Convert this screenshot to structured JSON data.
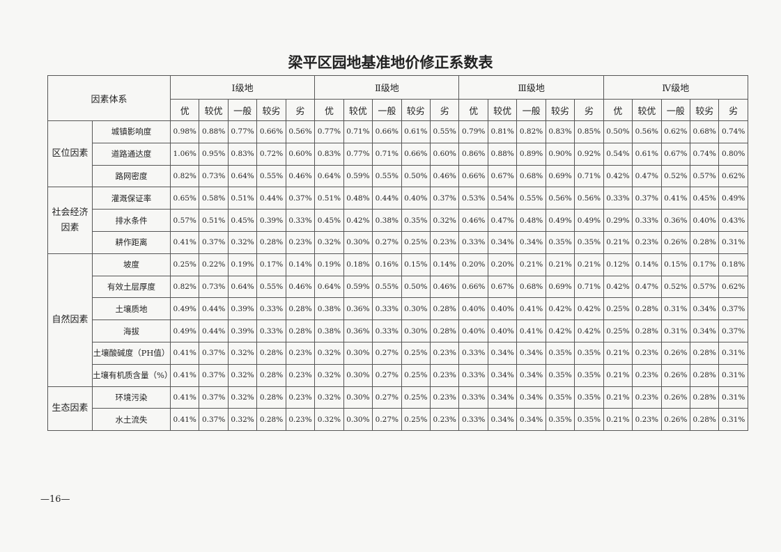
{
  "header": {
    "title": "梁平区园地基准地价修正系数表"
  },
  "table": {
    "corner": "因素体系",
    "grades": [
      "Ⅰ级地",
      "Ⅱ级地",
      "Ⅲ级地",
      "Ⅳ级地"
    ],
    "levels": [
      "优",
      "较优",
      "一般",
      "较劣",
      "劣"
    ],
    "groups": [
      {
        "name": "区位因素",
        "rows": [
          {
            "factor": "城镇影响度",
            "values": [
              "0.98%",
              "0.88%",
              "0.77%",
              "0.66%",
              "0.56%",
              "0.77%",
              "0.71%",
              "0.66%",
              "0.61%",
              "0.55%",
              "0.79%",
              "0.81%",
              "0.82%",
              "0.83%",
              "0.85%",
              "0.50%",
              "0.56%",
              "0.62%",
              "0.68%",
              "0.74%"
            ]
          },
          {
            "factor": "道路通达度",
            "values": [
              "1.06%",
              "0.95%",
              "0.83%",
              "0.72%",
              "0.60%",
              "0.83%",
              "0.77%",
              "0.71%",
              "0.66%",
              "0.60%",
              "0.86%",
              "0.88%",
              "0.89%",
              "0.90%",
              "0.92%",
              "0.54%",
              "0.61%",
              "0.67%",
              "0.74%",
              "0.80%"
            ]
          },
          {
            "factor": "路网密度",
            "values": [
              "0.82%",
              "0.73%",
              "0.64%",
              "0.55%",
              "0.46%",
              "0.64%",
              "0.59%",
              "0.55%",
              "0.50%",
              "0.46%",
              "0.66%",
              "0.67%",
              "0.68%",
              "0.69%",
              "0.71%",
              "0.42%",
              "0.47%",
              "0.52%",
              "0.57%",
              "0.62%"
            ]
          }
        ]
      },
      {
        "name": "社会经济因素",
        "rows": [
          {
            "factor": "灌溉保证率",
            "values": [
              "0.65%",
              "0.58%",
              "0.51%",
              "0.44%",
              "0.37%",
              "0.51%",
              "0.48%",
              "0.44%",
              "0.40%",
              "0.37%",
              "0.53%",
              "0.54%",
              "0.55%",
              "0.56%",
              "0.56%",
              "0.33%",
              "0.37%",
              "0.41%",
              "0.45%",
              "0.49%"
            ]
          },
          {
            "factor": "排水条件",
            "values": [
              "0.57%",
              "0.51%",
              "0.45%",
              "0.39%",
              "0.33%",
              "0.45%",
              "0.42%",
              "0.38%",
              "0.35%",
              "0.32%",
              "0.46%",
              "0.47%",
              "0.48%",
              "0.49%",
              "0.49%",
              "0.29%",
              "0.33%",
              "0.36%",
              "0.40%",
              "0.43%"
            ]
          },
          {
            "factor": "耕作距离",
            "values": [
              "0.41%",
              "0.37%",
              "0.32%",
              "0.28%",
              "0.23%",
              "0.32%",
              "0.30%",
              "0.27%",
              "0.25%",
              "0.23%",
              "0.33%",
              "0.34%",
              "0.34%",
              "0.35%",
              "0.35%",
              "0.21%",
              "0.23%",
              "0.26%",
              "0.28%",
              "0.31%"
            ]
          }
        ]
      },
      {
        "name": "自然因素",
        "rows": [
          {
            "factor": "坡度",
            "values": [
              "0.25%",
              "0.22%",
              "0.19%",
              "0.17%",
              "0.14%",
              "0.19%",
              "0.18%",
              "0.16%",
              "0.15%",
              "0.14%",
              "0.20%",
              "0.20%",
              "0.21%",
              "0.21%",
              "0.21%",
              "0.12%",
              "0.14%",
              "0.15%",
              "0.17%",
              "0.18%"
            ]
          },
          {
            "factor": "有效土层厚度",
            "values": [
              "0.82%",
              "0.73%",
              "0.64%",
              "0.55%",
              "0.46%",
              "0.64%",
              "0.59%",
              "0.55%",
              "0.50%",
              "0.46%",
              "0.66%",
              "0.67%",
              "0.68%",
              "0.69%",
              "0.71%",
              "0.42%",
              "0.47%",
              "0.52%",
              "0.57%",
              "0.62%"
            ]
          },
          {
            "factor": "土壤质地",
            "values": [
              "0.49%",
              "0.44%",
              "0.39%",
              "0.33%",
              "0.28%",
              "0.38%",
              "0.36%",
              "0.33%",
              "0.30%",
              "0.28%",
              "0.40%",
              "0.40%",
              "0.41%",
              "0.42%",
              "0.42%",
              "0.25%",
              "0.28%",
              "0.31%",
              "0.34%",
              "0.37%"
            ]
          },
          {
            "factor": "海拔",
            "values": [
              "0.49%",
              "0.44%",
              "0.39%",
              "0.33%",
              "0.28%",
              "0.38%",
              "0.36%",
              "0.33%",
              "0.30%",
              "0.28%",
              "0.40%",
              "0.40%",
              "0.41%",
              "0.42%",
              "0.42%",
              "0.25%",
              "0.28%",
              "0.31%",
              "0.34%",
              "0.37%"
            ]
          },
          {
            "factor": "土壤酸碱度（PH值）",
            "values": [
              "0.41%",
              "0.37%",
              "0.32%",
              "0.28%",
              "0.23%",
              "0.32%",
              "0.30%",
              "0.27%",
              "0.25%",
              "0.23%",
              "0.33%",
              "0.34%",
              "0.34%",
              "0.35%",
              "0.35%",
              "0.21%",
              "0.23%",
              "0.26%",
              "0.28%",
              "0.31%"
            ]
          },
          {
            "factor": "土壤有机质含量（%）",
            "values": [
              "0.41%",
              "0.37%",
              "0.32%",
              "0.28%",
              "0.23%",
              "0.32%",
              "0.30%",
              "0.27%",
              "0.25%",
              "0.23%",
              "0.33%",
              "0.34%",
              "0.34%",
              "0.35%",
              "0.35%",
              "0.21%",
              "0.23%",
              "0.26%",
              "0.28%",
              "0.31%"
            ]
          }
        ]
      },
      {
        "name": "生态因素",
        "rows": [
          {
            "factor": "环境污染",
            "values": [
              "0.41%",
              "0.37%",
              "0.32%",
              "0.28%",
              "0.23%",
              "0.32%",
              "0.30%",
              "0.27%",
              "0.25%",
              "0.23%",
              "0.33%",
              "0.34%",
              "0.34%",
              "0.35%",
              "0.35%",
              "0.21%",
              "0.23%",
              "0.26%",
              "0.28%",
              "0.31%"
            ]
          },
          {
            "factor": "水土流失",
            "values": [
              "0.41%",
              "0.37%",
              "0.32%",
              "0.28%",
              "0.23%",
              "0.32%",
              "0.30%",
              "0.27%",
              "0.25%",
              "0.23%",
              "0.33%",
              "0.34%",
              "0.34%",
              "0.35%",
              "0.35%",
              "0.21%",
              "0.23%",
              "0.26%",
              "0.28%",
              "0.31%"
            ]
          }
        ]
      }
    ]
  },
  "footer": {
    "page": "—16—"
  }
}
